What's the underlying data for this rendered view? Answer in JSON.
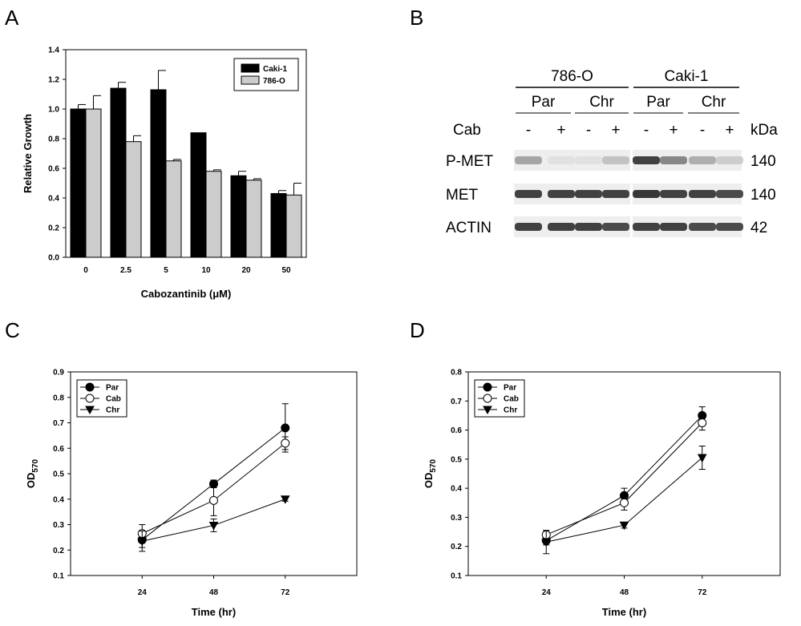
{
  "panels": {
    "A": "A",
    "B": "B",
    "C": "C",
    "D": "D"
  },
  "chart_data": [
    {
      "type": "bar",
      "panel": "A",
      "categories": [
        "0",
        "2.5",
        "5",
        "10",
        "20",
        "50"
      ],
      "series": [
        {
          "name": "Caki-1",
          "color": "#000000",
          "values": [
            1.0,
            1.14,
            1.13,
            0.84,
            0.55,
            0.43
          ],
          "errors": [
            0.03,
            0.04,
            0.13,
            0.0,
            0.03,
            0.02
          ]
        },
        {
          "name": "786-O",
          "color": "#cccccc",
          "values": [
            1.0,
            0.78,
            0.65,
            0.58,
            0.52,
            0.42
          ],
          "errors": [
            0.09,
            0.04,
            0.01,
            0.01,
            0.01,
            0.08
          ]
        }
      ],
      "xlabel": "Cabozantinib (μM)",
      "ylabel": "Relative Growth",
      "ylim": [
        0,
        1.4
      ],
      "yticks": [
        "0.0",
        "0.2",
        "0.4",
        "0.6",
        "0.8",
        "1.0",
        "1.2",
        "1.4"
      ],
      "legend_position": "top-right"
    },
    {
      "type": "line",
      "panel": "C",
      "x": [
        "24",
        "48",
        "72"
      ],
      "series": [
        {
          "name": "Par",
          "marker": "filled-circle",
          "values": [
            0.24,
            0.46,
            0.68
          ],
          "errors": [
            0.03,
            0.015,
            0.095
          ]
        },
        {
          "name": "Cab",
          "marker": "open-circle",
          "values": [
            0.265,
            0.395,
            0.62
          ],
          "errors": [
            0.035,
            0.06,
            0.025
          ]
        },
        {
          "name": "Chr",
          "marker": "filled-triangle-down",
          "values": [
            0.235,
            0.297,
            0.4
          ],
          "errors": [
            0.04,
            0.025,
            0.008
          ]
        }
      ],
      "xlabel": "Time (hr)",
      "ylabel_main": "OD",
      "ylabel_sub": "570",
      "ylim": [
        0.1,
        0.9
      ],
      "yticks": [
        "0.1",
        "0.2",
        "0.3",
        "0.4",
        "0.5",
        "0.6",
        "0.7",
        "0.8",
        "0.9"
      ],
      "legend_position": "top-left"
    },
    {
      "type": "line",
      "panel": "D",
      "x": [
        "24",
        "48",
        "72"
      ],
      "series": [
        {
          "name": "Par",
          "marker": "filled-circle",
          "values": [
            0.22,
            0.375,
            0.65
          ],
          "errors": [
            0.015,
            0.025,
            0.03
          ]
        },
        {
          "name": "Cab",
          "marker": "open-circle",
          "values": [
            0.24,
            0.35,
            0.625
          ],
          "errors": [
            0.015,
            0.025,
            0.025
          ]
        },
        {
          "name": "Chr",
          "marker": "filled-triangle-down",
          "values": [
            0.215,
            0.273,
            0.505
          ],
          "errors": [
            0.04,
            0.01,
            0.04
          ]
        }
      ],
      "xlabel": "Time (hr)",
      "ylabel_main": "OD",
      "ylabel_sub": "570",
      "ylim": [
        0.1,
        0.8
      ],
      "yticks": [
        "0.1",
        "0.2",
        "0.3",
        "0.4",
        "0.5",
        "0.6",
        "0.7",
        "0.8"
      ],
      "legend_position": "top-left"
    }
  ],
  "blot": {
    "cell_lines": [
      "786-O",
      "Caki-1"
    ],
    "groups": [
      "Par",
      "Chr",
      "Par",
      "Chr"
    ],
    "cab_label": "Cab",
    "cab_signs": [
      "-",
      "+",
      "-",
      "+",
      "-",
      "+",
      "-",
      "+"
    ],
    "kda_label": "kDa",
    "rows": [
      {
        "name": "P-MET",
        "kda": "140",
        "intensity": [
          0.35,
          0.05,
          0.05,
          0.2,
          0.85,
          0.5,
          0.3,
          0.15
        ]
      },
      {
        "name": "MET",
        "kda": "140",
        "intensity": [
          0.85,
          0.85,
          0.85,
          0.85,
          0.9,
          0.85,
          0.85,
          0.8
        ]
      },
      {
        "name": "ACTIN",
        "kda": "42",
        "intensity": [
          0.85,
          0.85,
          0.85,
          0.8,
          0.85,
          0.85,
          0.8,
          0.8
        ]
      }
    ]
  }
}
